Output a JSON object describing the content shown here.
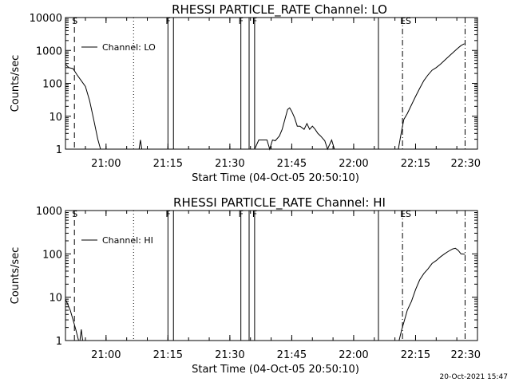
{
  "chart_data": [
    {
      "type": "line",
      "title": "RHESSI PARTICLE_RATE Channel: LO",
      "xlabel": "Start Time (04-Oct-05 20:50:10)",
      "ylabel": "Counts/sec",
      "yscale": "log",
      "xlim": [
        "20:50:10",
        "22:30:00"
      ],
      "ylim": [
        1,
        10000
      ],
      "x_ticks": [
        "21:00",
        "21:15",
        "21:30",
        "21:45",
        "22:00",
        "22:15",
        "22:30"
      ],
      "y_ticks": [
        "1",
        "10",
        "100",
        "1000",
        "10000"
      ],
      "legend": {
        "position": "top-left",
        "label": "Channel: LO"
      },
      "markers": [
        {
          "time": "20:52:20",
          "style": "dashed",
          "label": "S"
        },
        {
          "time": "21:06:40",
          "style": "dotted",
          "label": ""
        },
        {
          "time": "21:15:00",
          "style": "solid",
          "label": "F"
        },
        {
          "time": "21:16:20",
          "style": "solid",
          "label": ""
        },
        {
          "time": "21:32:40",
          "style": "solid",
          "label": "F"
        },
        {
          "time": "21:34:40",
          "style": "solid",
          "label": ""
        },
        {
          "time": "21:36:00",
          "style": "solid",
          "label": "F"
        },
        {
          "time": "22:06:00",
          "style": "solid",
          "label": ""
        },
        {
          "time": "22:11:50",
          "style": "dashdot",
          "label": "ES"
        },
        {
          "time": "22:27:00",
          "style": "dashdot",
          "label": ""
        }
      ],
      "series": [
        {
          "name": "Channel: LO",
          "segments": [
            [
              [
                "20:50:10",
                380
              ],
              [
                "20:51:00",
                300
              ],
              [
                "20:52:00",
                280
              ],
              [
                "20:53:00",
                180
              ],
              [
                "20:54:00",
                120
              ],
              [
                "20:55:00",
                80
              ],
              [
                "20:56:00",
                30
              ],
              [
                "20:57:00",
                8
              ],
              [
                "20:58:00",
                2
              ],
              [
                "20:58:40",
                1
              ],
              [
                "21:00:30",
                1
              ]
            ],
            [
              [
                "21:08:00",
                1
              ],
              [
                "21:08:20",
                1.9
              ],
              [
                "21:08:40",
                1
              ]
            ],
            [
              [
                "21:15:00",
                1
              ],
              [
                "21:16:20",
                1
              ]
            ],
            [
              [
                "21:36:00",
                1
              ],
              [
                "21:37:00",
                1.9
              ],
              [
                "21:39:00",
                1.9
              ],
              [
                "21:39:40",
                1
              ],
              [
                "21:40:20",
                1.9
              ],
              [
                "21:41:00",
                1.8
              ],
              [
                "21:42:00",
                2.5
              ],
              [
                "21:42:40",
                4
              ],
              [
                "21:43:20",
                8
              ],
              [
                "21:44:00",
                16
              ],
              [
                "21:44:30",
                18
              ],
              [
                "21:45:00",
                14
              ],
              [
                "21:45:40",
                9
              ],
              [
                "21:46:20",
                5
              ],
              [
                "21:47:00",
                5
              ],
              [
                "21:48:00",
                4
              ],
              [
                "21:48:40",
                6
              ],
              [
                "21:49:20",
                4
              ],
              [
                "21:50:00",
                5
              ],
              [
                "21:50:40",
                4
              ],
              [
                "21:51:20",
                3
              ],
              [
                "21:52:00",
                2.5
              ],
              [
                "21:53:00",
                1.8
              ],
              [
                "21:53:40",
                1
              ],
              [
                "21:54:40",
                1.9
              ],
              [
                "21:55:20",
                1
              ]
            ],
            [
              [
                "22:10:50",
                1
              ],
              [
                "22:11:30",
                3
              ],
              [
                "22:12:10",
                8
              ],
              [
                "22:13:00",
                12
              ],
              [
                "22:14:00",
                22
              ],
              [
                "22:15:00",
                40
              ],
              [
                "22:16:00",
                70
              ],
              [
                "22:17:00",
                120
              ],
              [
                "22:18:00",
                180
              ],
              [
                "22:19:00",
                250
              ],
              [
                "22:20:00",
                300
              ],
              [
                "22:21:00",
                380
              ],
              [
                "22:22:00",
                500
              ],
              [
                "22:23:00",
                650
              ],
              [
                "22:24:00",
                850
              ],
              [
                "22:25:00",
                1100
              ],
              [
                "22:26:00",
                1400
              ],
              [
                "22:26:50",
                1600
              ]
            ]
          ]
        }
      ]
    },
    {
      "type": "line",
      "title": "RHESSI PARTICLE_RATE Channel: HI",
      "xlabel": "Start Time (04-Oct-05 20:50:10)",
      "ylabel": "Counts/sec",
      "yscale": "log",
      "xlim": [
        "20:50:10",
        "22:30:00"
      ],
      "ylim": [
        1,
        1000
      ],
      "x_ticks": [
        "21:00",
        "21:15",
        "21:30",
        "21:45",
        "22:00",
        "22:15",
        "22:30"
      ],
      "y_ticks": [
        "1",
        "10",
        "100",
        "1000"
      ],
      "legend": {
        "position": "top-left",
        "label": "Channel: HI"
      },
      "markers": [
        {
          "time": "20:52:20",
          "style": "dashed",
          "label": "S"
        },
        {
          "time": "21:06:40",
          "style": "dotted",
          "label": ""
        },
        {
          "time": "21:15:00",
          "style": "solid",
          "label": "F"
        },
        {
          "time": "21:16:20",
          "style": "solid",
          "label": ""
        },
        {
          "time": "21:32:40",
          "style": "solid",
          "label": "F"
        },
        {
          "time": "21:34:40",
          "style": "solid",
          "label": ""
        },
        {
          "time": "21:36:00",
          "style": "solid",
          "label": "F"
        },
        {
          "time": "22:06:00",
          "style": "solid",
          "label": ""
        },
        {
          "time": "22:11:50",
          "style": "dashdot",
          "label": "ES"
        },
        {
          "time": "22:27:00",
          "style": "dashdot",
          "label": ""
        }
      ],
      "series": [
        {
          "name": "Channel: HI",
          "segments": [
            [
              [
                "20:50:10",
                9
              ],
              [
                "20:50:40",
                7
              ],
              [
                "20:51:20",
                5
              ],
              [
                "20:52:00",
                3
              ],
              [
                "20:52:40",
                1.8
              ],
              [
                "20:53:20",
                1
              ]
            ],
            [
              [
                "20:53:40",
                1
              ],
              [
                "20:54:00",
                1.8
              ],
              [
                "20:54:20",
                1
              ]
            ],
            [
              [
                "22:11:00",
                1
              ],
              [
                "22:11:40",
                1.8
              ],
              [
                "22:12:20",
                3
              ],
              [
                "22:13:00",
                5
              ],
              [
                "22:14:00",
                8
              ],
              [
                "22:15:00",
                15
              ],
              [
                "22:16:00",
                25
              ],
              [
                "22:17:00",
                35
              ],
              [
                "22:18:00",
                45
              ],
              [
                "22:19:00",
                60
              ],
              [
                "22:20:00",
                70
              ],
              [
                "22:21:00",
                85
              ],
              [
                "22:22:00",
                100
              ],
              [
                "22:23:00",
                115
              ],
              [
                "22:24:00",
                130
              ],
              [
                "22:24:40",
                135
              ],
              [
                "22:25:20",
                120
              ],
              [
                "22:26:00",
                100
              ],
              [
                "22:27:00",
                98
              ]
            ]
          ]
        }
      ]
    }
  ],
  "timestamp": "20-Oct-2021 15:47"
}
